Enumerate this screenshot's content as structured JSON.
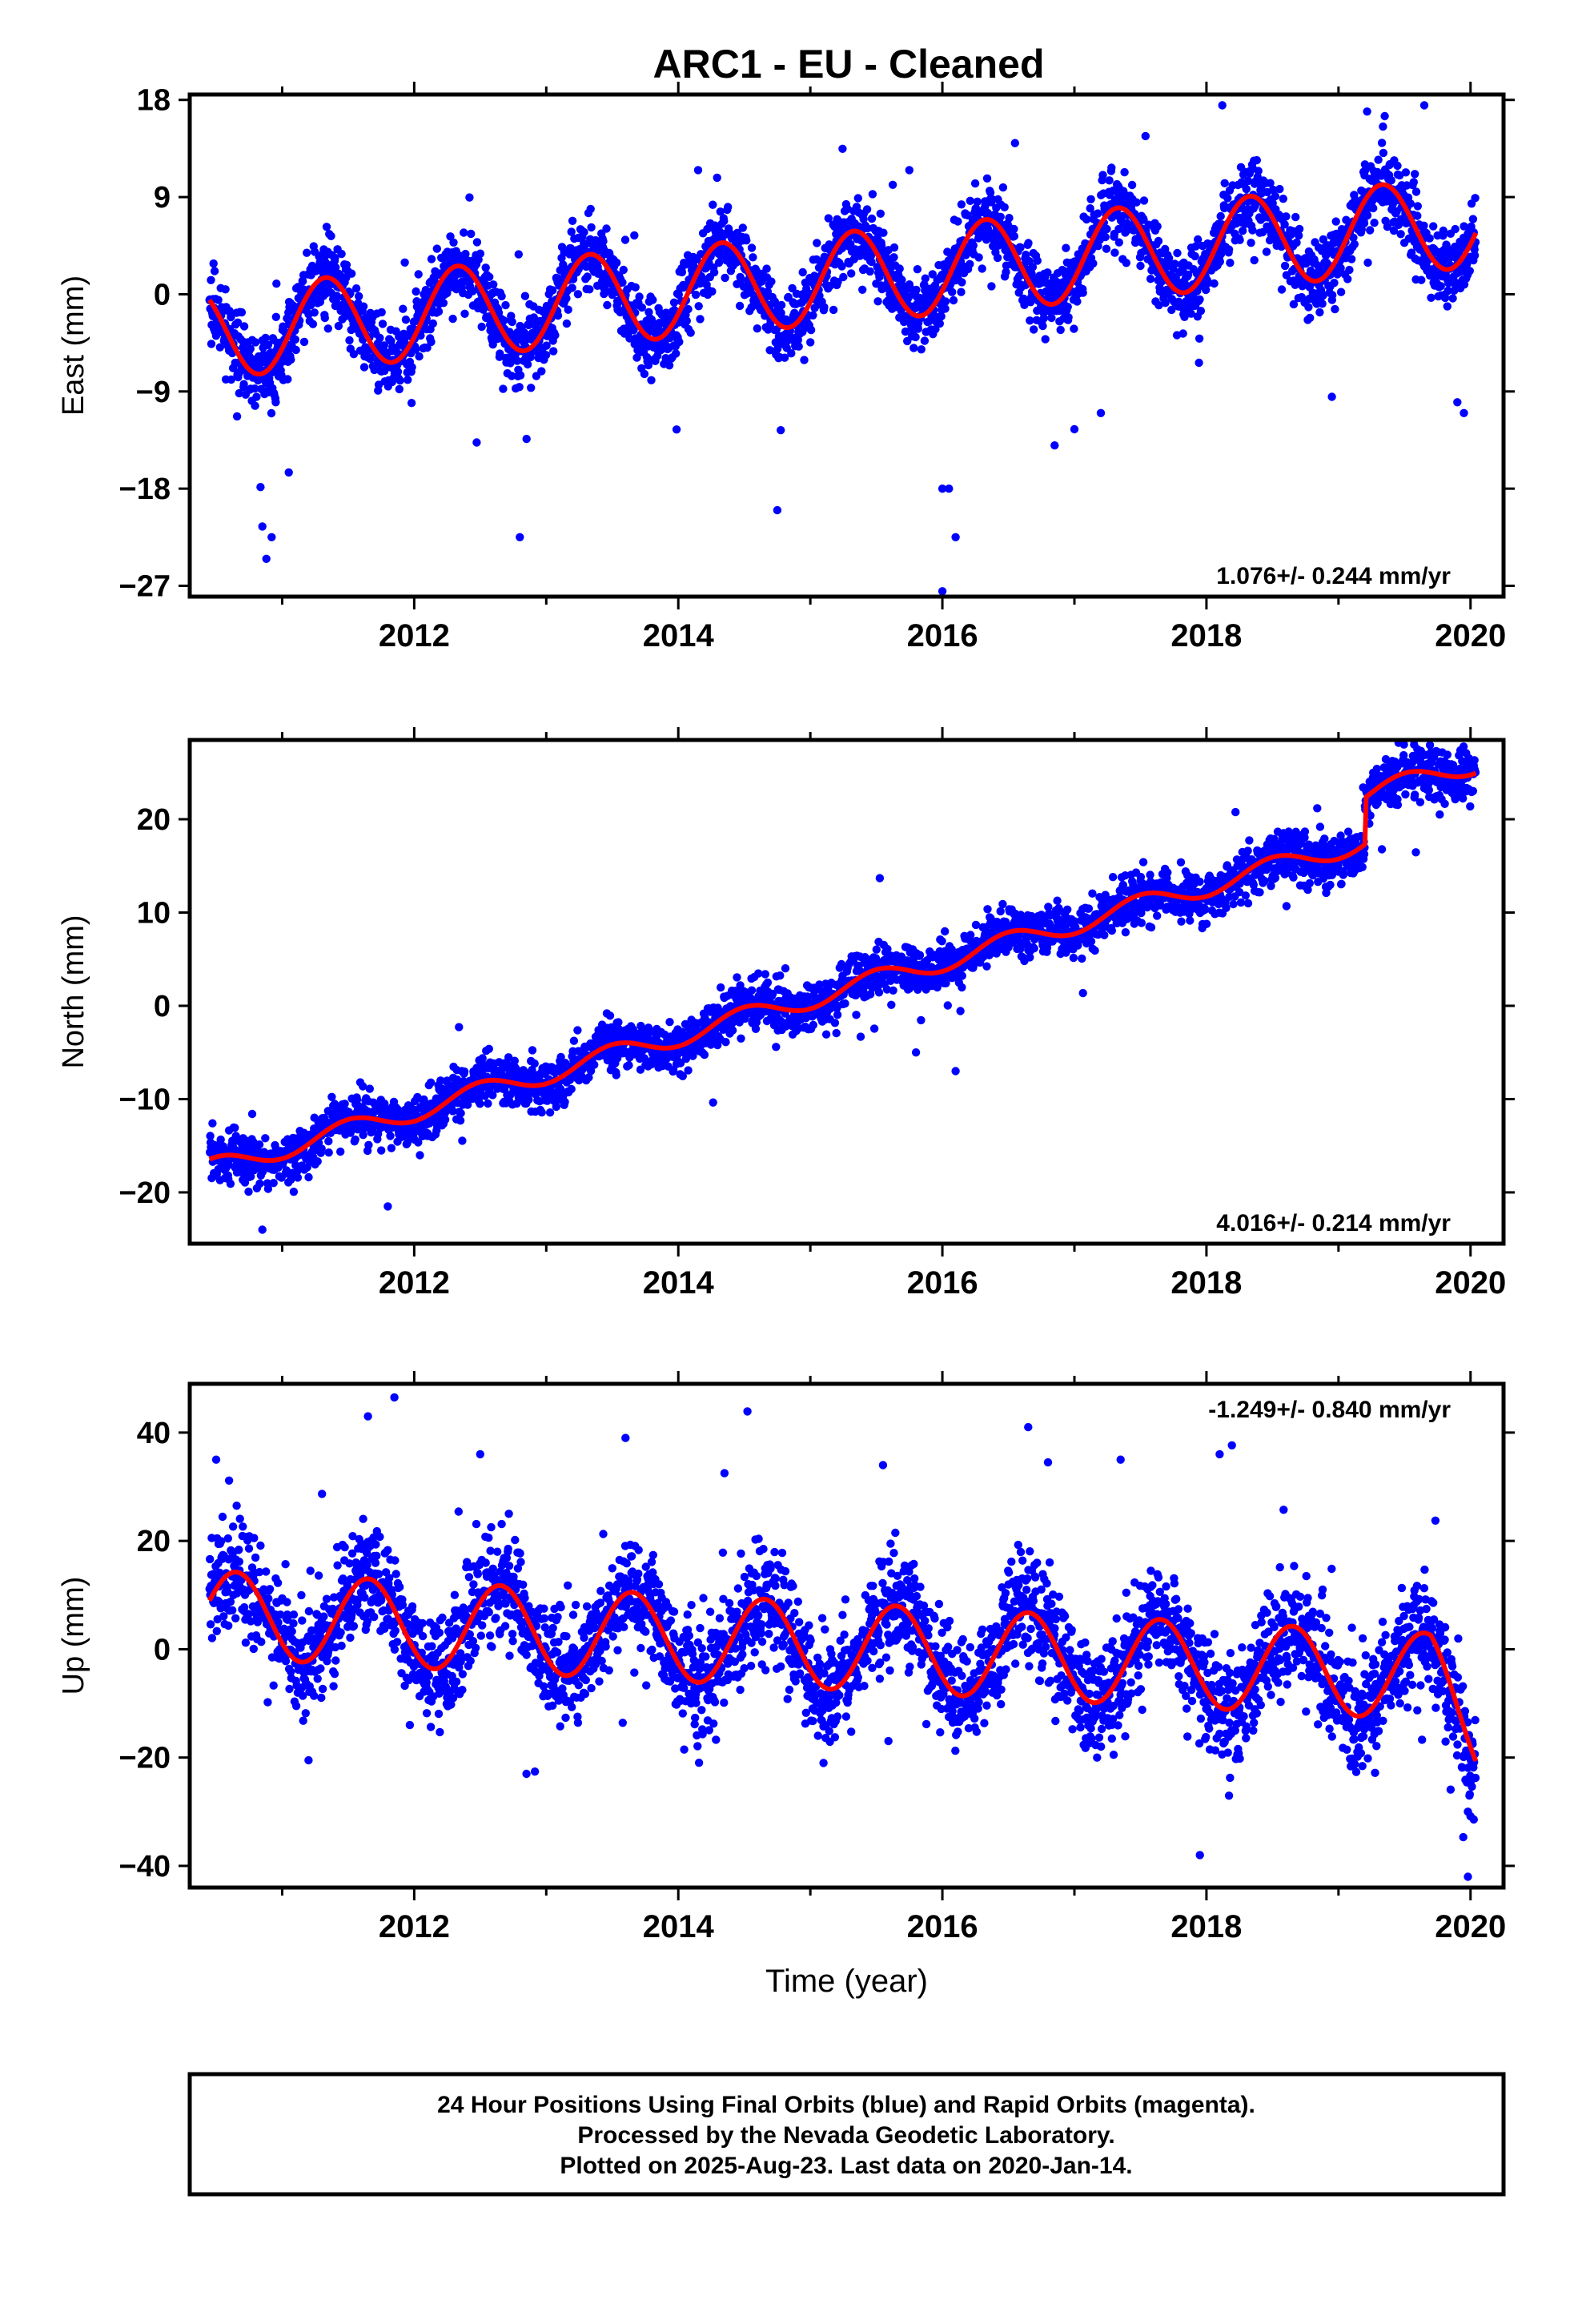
{
  "title": "ARC1  - EU - Cleaned",
  "chart_data": [
    {
      "type": "scatter",
      "panel": "east",
      "ylabel": "East (mm)",
      "xlim": [
        2010.3,
        2020.25
      ],
      "ylim": [
        -28,
        18.5
      ],
      "yticks": [
        18,
        9,
        0,
        -9,
        -18,
        -27
      ],
      "xticks": [
        2012,
        2014,
        2016,
        2018,
        2020
      ],
      "rate_label": "1.076+/- 0.244 mm/yr",
      "rate_position": "bottom-right",
      "grid": false,
      "series": [
        {
          "kind": "points",
          "color": "#0000ff",
          "trend": 1.076,
          "annual_amplitude": 4.2,
          "phase": 2011.33,
          "noise": 1.7,
          "offset": -3.6,
          "t0": 2010.45
        },
        {
          "kind": "model",
          "color": "#ff0000"
        }
      ],
      "outliers": [
        [
          2010.85,
          -21.5
        ],
        [
          2010.92,
          -22.5
        ],
        [
          2010.88,
          -24.5
        ],
        [
          2011.05,
          -16.5
        ],
        [
          2012.8,
          -22.5
        ],
        [
          2014.75,
          -20
        ],
        [
          2016.0,
          -18
        ],
        [
          2016.05,
          -18
        ],
        [
          2016.1,
          -22.5
        ],
        [
          2016.0,
          -27.5
        ],
        [
          2015.75,
          11.5
        ],
        [
          2018.12,
          17.5
        ],
        [
          2019.35,
          16.5
        ],
        [
          2019.65,
          17.5
        ],
        [
          2014.15,
          11.5
        ],
        [
          2016.55,
          14
        ],
        [
          2016.85,
          -14
        ],
        [
          2017.0,
          -12.5
        ],
        [
          2017.2,
          -11
        ],
        [
          2019.9,
          -10
        ],
        [
          2019.95,
          -11
        ],
        [
          2018.95,
          -9.5
        ]
      ]
    },
    {
      "type": "scatter",
      "panel": "north",
      "ylabel": "North (mm)",
      "xlim": [
        2010.3,
        2020.25
      ],
      "ylim": [
        -25.5,
        28.5
      ],
      "yticks": [
        20,
        10,
        0,
        -10,
        -20
      ],
      "xticks": [
        2012,
        2014,
        2016,
        2018,
        2020
      ],
      "rate_label": "4.016+/- 0.214 mm/yr",
      "rate_position": "bottom-right",
      "grid": false,
      "series": [
        {
          "kind": "points",
          "color": "#0000ff",
          "trend": 4.016,
          "annual_amplitude": 1.1,
          "phase": 2011.5,
          "noise": 1.3,
          "offset": -17.5,
          "t0": 2010.45,
          "step": {
            "at": 2019.2,
            "size": 5.0
          }
        },
        {
          "kind": "model",
          "color": "#ff0000"
        }
      ],
      "outliers": [
        [
          2010.85,
          -24
        ],
        [
          2011.8,
          -21.5
        ],
        [
          2016.1,
          -7
        ],
        [
          2015.8,
          -5
        ]
      ]
    },
    {
      "type": "scatter",
      "panel": "up",
      "ylabel": "Up (mm)",
      "xlabel": "Time (year)",
      "xlim": [
        2010.3,
        2020.25
      ],
      "ylim": [
        -44,
        49
      ],
      "yticks": [
        40,
        20,
        0,
        -20,
        -40
      ],
      "xticks": [
        2012,
        2014,
        2016,
        2018,
        2020
      ],
      "rate_label": "-1.249+/- 0.840 mm/yr",
      "rate_position": "top-right",
      "grid": false,
      "series": [
        {
          "kind": "points",
          "color": "#0000ff",
          "trend": -1.249,
          "annual_amplitude": 8.0,
          "phase": 2011.65,
          "noise": 5.0,
          "offset": 6.5,
          "t0": 2010.45,
          "end_drop": 12
        },
        {
          "kind": "model",
          "color": "#ff0000"
        }
      ],
      "outliers": [
        [
          2010.5,
          35
        ],
        [
          2011.65,
          43
        ],
        [
          2011.85,
          46.5
        ],
        [
          2012.5,
          36
        ],
        [
          2013.6,
          39
        ],
        [
          2014.35,
          32.5
        ],
        [
          2015.55,
          34
        ],
        [
          2016.65,
          41
        ],
        [
          2016.8,
          34.5
        ],
        [
          2017.35,
          35
        ],
        [
          2018.1,
          36
        ],
        [
          2017.95,
          -38
        ],
        [
          2019.98,
          -42
        ],
        [
          2019.98,
          -30
        ],
        [
          2012.85,
          -23
        ],
        [
          2011.2,
          -20.5
        ],
        [
          2015.1,
          -21
        ]
      ]
    }
  ],
  "footer": {
    "line1": "24 Hour Positions Using Final Orbits (blue) and Rapid Orbits (magenta).",
    "line2": "Processed by the Nevada Geodetic Laboratory.",
    "line3": "Plotted on 2025-Aug-23. Last data on 2020-Jan-14."
  }
}
